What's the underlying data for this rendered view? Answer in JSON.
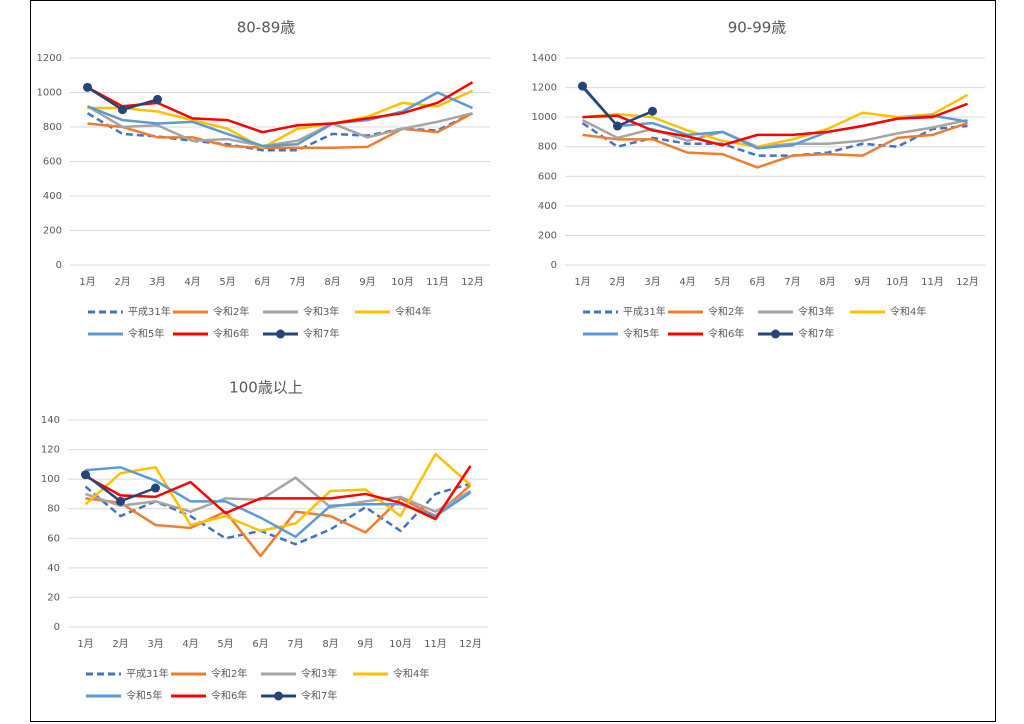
{
  "chart_data": [
    {
      "type": "line",
      "title": "80-89歳",
      "categories": [
        "1月",
        "2月",
        "3月",
        "4月",
        "5月",
        "6月",
        "7月",
        "8月",
        "9月",
        "10月",
        "11月",
        "12月"
      ],
      "ylim": [
        0,
        1200
      ],
      "yticks": [
        0,
        200,
        400,
        600,
        800,
        1000,
        1200
      ],
      "grid": true,
      "series": [
        {
          "name": "平成31年",
          "color": "#4472c4",
          "dash": true,
          "marker": false,
          "values": [
            880,
            760,
            745,
            720,
            700,
            665,
            665,
            760,
            750,
            790,
            780,
            880
          ]
        },
        {
          "name": "令和2年",
          "color": "#ed7d31",
          "dash": false,
          "marker": false,
          "values": [
            820,
            800,
            740,
            740,
            690,
            680,
            680,
            680,
            685,
            790,
            770,
            880
          ]
        },
        {
          "name": "令和3年",
          "color": "#a5a5a5",
          "dash": false,
          "marker": false,
          "values": [
            920,
            800,
            810,
            720,
            730,
            690,
            720,
            820,
            740,
            790,
            830,
            880
          ]
        },
        {
          "name": "令和4年",
          "color": "#ffc000",
          "dash": false,
          "marker": false,
          "values": [
            910,
            910,
            890,
            840,
            790,
            680,
            790,
            820,
            860,
            940,
            920,
            1010
          ]
        },
        {
          "name": "令和5年",
          "color": "#5b9bd5",
          "dash": false,
          "marker": false,
          "values": [
            920,
            840,
            820,
            830,
            760,
            690,
            700,
            820,
            840,
            890,
            1000,
            910
          ]
        },
        {
          "name": "令和6年",
          "color": "#ff0000",
          "dash": false,
          "marker": false,
          "values": [
            1030,
            920,
            940,
            850,
            840,
            770,
            810,
            820,
            850,
            880,
            940,
            1060
          ]
        },
        {
          "name": "令和7年",
          "color": "#264478",
          "dash": false,
          "marker": true,
          "values": [
            1030,
            900,
            960,
            null,
            null,
            null,
            null,
            null,
            null,
            null,
            null,
            null
          ]
        }
      ]
    },
    {
      "type": "line",
      "title": "90-99歳",
      "categories": [
        "1月",
        "2月",
        "3月",
        "4月",
        "5月",
        "6月",
        "7月",
        "8月",
        "9月",
        "10月",
        "11月",
        "12月"
      ],
      "ylim": [
        0,
        1400
      ],
      "yticks": [
        0,
        200,
        400,
        600,
        800,
        1000,
        1200,
        1400
      ],
      "grid": true,
      "series": [
        {
          "name": "平成31年",
          "color": "#4472c4",
          "dash": true,
          "marker": false,
          "values": [
            960,
            800,
            860,
            820,
            820,
            740,
            740,
            760,
            820,
            800,
            920,
            940
          ]
        },
        {
          "name": "令和2年",
          "color": "#ed7d31",
          "dash": false,
          "marker": false,
          "values": [
            880,
            850,
            850,
            760,
            750,
            660,
            740,
            750,
            740,
            860,
            880,
            960
          ]
        },
        {
          "name": "令和3年",
          "color": "#a5a5a5",
          "dash": false,
          "marker": false,
          "values": [
            980,
            860,
            920,
            840,
            900,
            800,
            820,
            820,
            840,
            890,
            930,
            980
          ]
        },
        {
          "name": "令和4年",
          "color": "#ffc000",
          "dash": false,
          "marker": false,
          "values": [
            1000,
            1020,
            1000,
            910,
            840,
            800,
            850,
            920,
            1030,
            1000,
            1020,
            1150
          ]
        },
        {
          "name": "令和5年",
          "color": "#5b9bd5",
          "dash": false,
          "marker": false,
          "values": [
            1200,
            940,
            960,
            880,
            900,
            790,
            810,
            900,
            940,
            990,
            1010,
            970
          ]
        },
        {
          "name": "令和6年",
          "color": "#ff0000",
          "dash": false,
          "marker": false,
          "values": [
            1000,
            1010,
            910,
            870,
            810,
            880,
            880,
            900,
            940,
            990,
            1000,
            1090
          ]
        },
        {
          "name": "令和7年",
          "color": "#264478",
          "dash": false,
          "marker": true,
          "values": [
            1210,
            940,
            1040,
            null,
            null,
            null,
            null,
            null,
            null,
            null,
            null,
            null
          ]
        }
      ]
    },
    {
      "type": "line",
      "title": "100歳以上",
      "categories": [
        "1月",
        "2月",
        "3月",
        "4月",
        "5月",
        "6月",
        "7月",
        "8月",
        "9月",
        "10月",
        "11月",
        "12月"
      ],
      "ylim": [
        0,
        140
      ],
      "yticks": [
        0,
        20,
        40,
        60,
        80,
        100,
        120,
        140
      ],
      "grid": true,
      "series": [
        {
          "name": "平成31年",
          "color": "#4472c4",
          "dash": true,
          "marker": false,
          "values": [
            95,
            75,
            85,
            75,
            60,
            65,
            56,
            66,
            81,
            65,
            90,
            97
          ]
        },
        {
          "name": "令和2年",
          "color": "#ed7d31",
          "dash": false,
          "marker": false,
          "values": [
            87,
            84,
            69,
            67,
            78,
            48,
            78,
            75,
            64,
            87,
            75,
            96
          ]
        },
        {
          "name": "令和3年",
          "color": "#a5a5a5",
          "dash": false,
          "marker": false,
          "values": [
            90,
            82,
            85,
            78,
            87,
            86,
            101,
            81,
            85,
            88,
            78,
            92
          ]
        },
        {
          "name": "令和4年",
          "color": "#ffc000",
          "dash": false,
          "marker": false,
          "values": [
            83,
            104,
            108,
            69,
            75,
            65,
            70,
            92,
            93,
            75,
            117,
            96
          ]
        },
        {
          "name": "令和5年",
          "color": "#5b9bd5",
          "dash": false,
          "marker": false,
          "values": [
            106,
            108,
            99,
            85,
            85,
            74,
            61,
            82,
            83,
            83,
            75,
            91
          ]
        },
        {
          "name": "令和6年",
          "color": "#ff0000",
          "dash": false,
          "marker": false,
          "values": [
            102,
            89,
            88,
            98,
            77,
            87,
            87,
            87,
            90,
            84,
            73,
            109
          ]
        },
        {
          "name": "令和7年",
          "color": "#264478",
          "dash": false,
          "marker": true,
          "values": [
            103,
            85,
            94,
            null,
            null,
            null,
            null,
            null,
            null,
            null,
            null,
            null
          ]
        }
      ]
    }
  ]
}
